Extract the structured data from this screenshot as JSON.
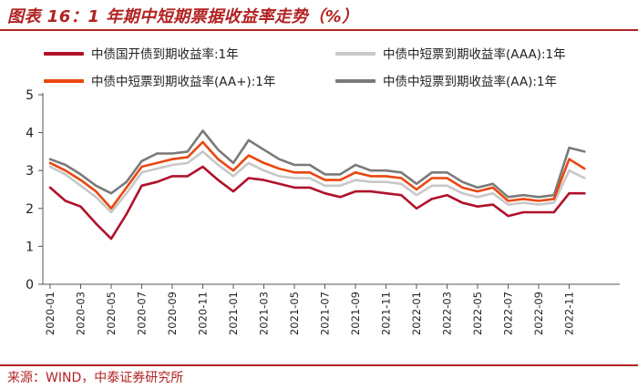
{
  "header": {
    "title": "图表 16：1 年期中短期票据收益率走势（%）"
  },
  "footer": {
    "source": "来源：WIND，中泰证券研究所"
  },
  "colors": {
    "s1": "#b0122a",
    "s2": "#c8c8c8",
    "s3": "#e8470f",
    "s4": "#7a7a7a",
    "accent": "#b22222"
  },
  "chart_data": {
    "type": "line",
    "title": "1 年期中短期票据收益率走势（%）",
    "ylim": [
      0,
      5
    ],
    "yticks": [
      "0",
      "1",
      "2",
      "3",
      "4",
      "5"
    ],
    "xticks": [
      "2020-01",
      "2020-03",
      "2020-05",
      "2020-07",
      "2020-09",
      "2020-11",
      "2021-01",
      "2021-03",
      "2021-05",
      "2021-07",
      "2021-09",
      "2021-11",
      "2022-01",
      "2022-03",
      "2022-05",
      "2022-07",
      "2022-09",
      "2022-11"
    ],
    "x": [
      "2020-01",
      "2020-02",
      "2020-03",
      "2020-04",
      "2020-05",
      "2020-06",
      "2020-07",
      "2020-08",
      "2020-09",
      "2020-10",
      "2020-11",
      "2020-12",
      "2021-01",
      "2021-02",
      "2021-03",
      "2021-04",
      "2021-05",
      "2021-06",
      "2021-07",
      "2021-08",
      "2021-09",
      "2021-10",
      "2021-11",
      "2021-12",
      "2022-01",
      "2022-02",
      "2022-03",
      "2022-04",
      "2022-05",
      "2022-06",
      "2022-07",
      "2022-08",
      "2022-09",
      "2022-10",
      "2022-11",
      "2022-12"
    ],
    "series": [
      {
        "name": "中债国开债到期收益率:1年",
        "color": "#b0122a",
        "values": [
          2.55,
          2.2,
          2.05,
          1.6,
          1.2,
          1.85,
          2.6,
          2.7,
          2.85,
          2.85,
          3.1,
          2.75,
          2.45,
          2.8,
          2.75,
          2.65,
          2.55,
          2.55,
          2.4,
          2.3,
          2.45,
          2.45,
          2.4,
          2.35,
          2.0,
          2.25,
          2.35,
          2.15,
          2.05,
          2.1,
          1.8,
          1.9,
          1.9,
          1.9,
          2.4,
          2.4
        ]
      },
      {
        "name": "中债中短票到期收益率(AAA):1年",
        "color": "#c8c8c8",
        "values": [
          3.1,
          2.9,
          2.6,
          2.3,
          1.9,
          2.4,
          2.95,
          3.05,
          3.15,
          3.2,
          3.5,
          3.15,
          2.85,
          3.2,
          3.0,
          2.85,
          2.8,
          2.8,
          2.6,
          2.6,
          2.75,
          2.7,
          2.7,
          2.65,
          2.35,
          2.6,
          2.6,
          2.4,
          2.3,
          2.4,
          2.1,
          2.15,
          2.1,
          2.15,
          3.0,
          2.8
        ]
      },
      {
        "name": "中债中短票到期收益率(AA+):1年",
        "color": "#e8470f",
        "values": [
          3.2,
          3.0,
          2.75,
          2.45,
          2.0,
          2.55,
          3.1,
          3.2,
          3.3,
          3.35,
          3.75,
          3.3,
          3.0,
          3.4,
          3.2,
          3.05,
          2.95,
          2.95,
          2.75,
          2.75,
          2.95,
          2.85,
          2.85,
          2.8,
          2.5,
          2.8,
          2.8,
          2.55,
          2.45,
          2.55,
          2.2,
          2.25,
          2.2,
          2.25,
          3.3,
          3.05
        ]
      },
      {
        "name": "中债中短票到期收益率(AA):1年",
        "color": "#7a7a7a",
        "values": [
          3.3,
          3.15,
          2.9,
          2.6,
          2.4,
          2.7,
          3.25,
          3.45,
          3.45,
          3.5,
          4.05,
          3.55,
          3.2,
          3.8,
          3.55,
          3.3,
          3.15,
          3.15,
          2.9,
          2.9,
          3.15,
          3.0,
          3.0,
          2.95,
          2.65,
          2.95,
          2.95,
          2.7,
          2.55,
          2.65,
          2.3,
          2.35,
          2.3,
          2.35,
          3.6,
          3.5
        ]
      }
    ]
  }
}
